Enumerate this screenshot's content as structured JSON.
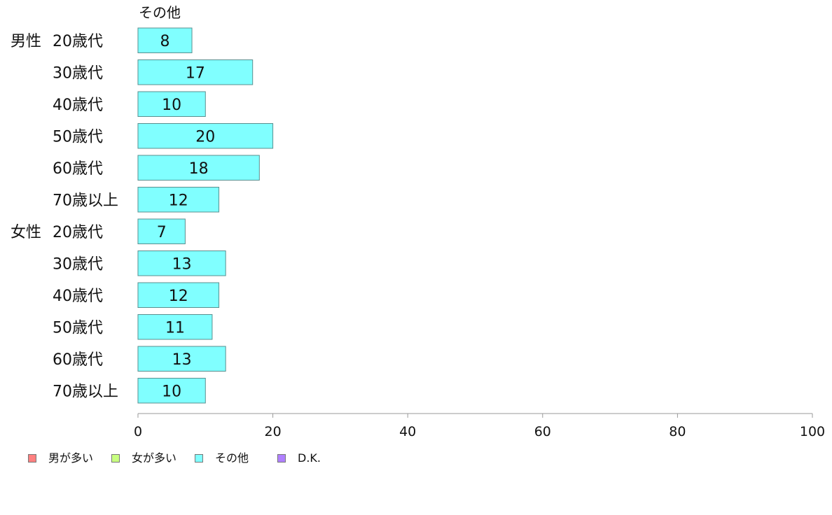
{
  "chart_data": {
    "type": "bar",
    "orientation": "horizontal",
    "series_header": "その他",
    "categories": [
      {
        "group": "男性",
        "label": "20歳代"
      },
      {
        "group": "",
        "label": "30歳代"
      },
      {
        "group": "",
        "label": "40歳代"
      },
      {
        "group": "",
        "label": "50歳代"
      },
      {
        "group": "",
        "label": "60歳代"
      },
      {
        "group": "",
        "label": "70歳以上"
      },
      {
        "group": "女性",
        "label": "20歳代"
      },
      {
        "group": "",
        "label": "30歳代"
      },
      {
        "group": "",
        "label": "40歳代"
      },
      {
        "group": "",
        "label": "50歳代"
      },
      {
        "group": "",
        "label": "60歳代"
      },
      {
        "group": "",
        "label": "70歳以上"
      }
    ],
    "series": [
      {
        "name": "その他",
        "color": "#80ffff",
        "values": [
          8,
          17,
          10,
          20,
          18,
          12,
          7,
          13,
          12,
          11,
          13,
          10
        ]
      }
    ],
    "xlim": [
      0,
      100
    ],
    "xticks": [
      0,
      20,
      40,
      60,
      80,
      100
    ],
    "grid": false,
    "legend_position": "bottom-left",
    "legend": [
      {
        "name": "男が多い",
        "color": "#ff8080"
      },
      {
        "name": "女が多い",
        "color": "#c8ff80"
      },
      {
        "name": "その他",
        "color": "#80ffff"
      },
      {
        "name": "D.K.",
        "color": "#b080ff"
      }
    ]
  }
}
